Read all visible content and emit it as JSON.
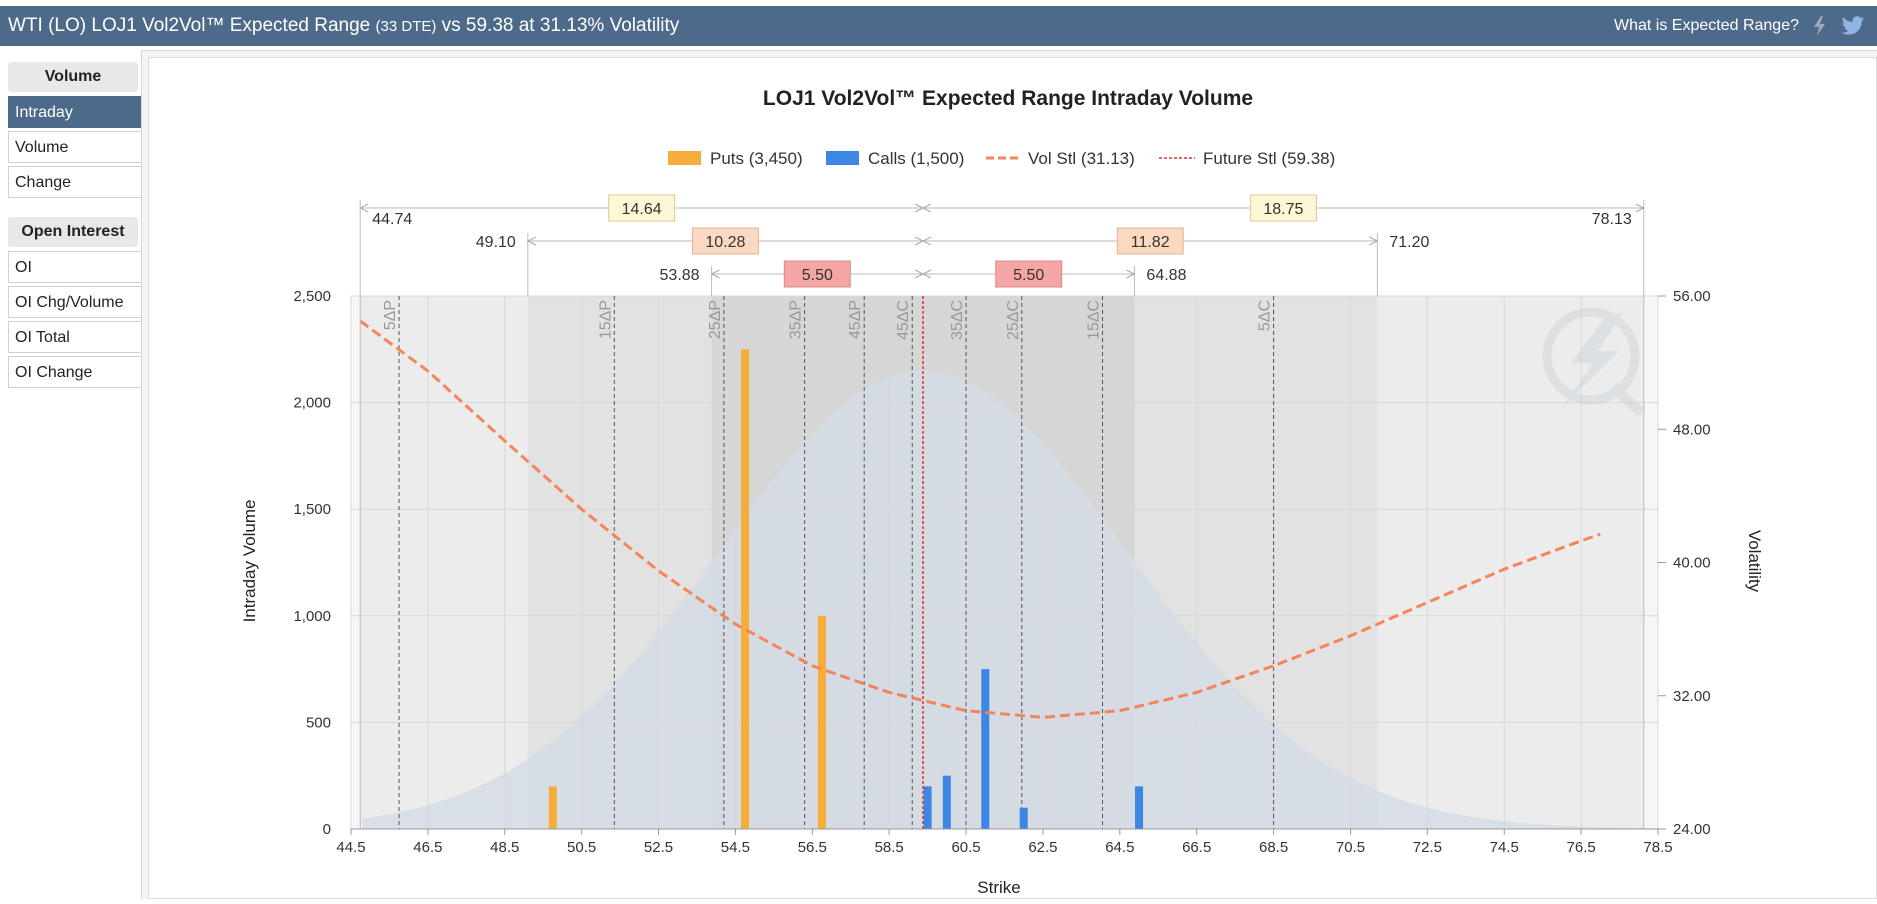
{
  "header": {
    "title_main": "WTI (LO) LOJ1 Vol2Vol™ Expected Range",
    "title_dte": "(33 DTE)",
    "title_tail": "vs 59.38 at 31.13% Volatility",
    "help_link": "What is Expected Range?",
    "icons": [
      "lightning-icon",
      "twitter-icon"
    ]
  },
  "sidebar": {
    "volume_heading": "Volume",
    "volume_items": [
      "Intraday",
      "Volume",
      "Change"
    ],
    "active_item": "Intraday",
    "oi_heading": "Open Interest",
    "oi_items": [
      "OI",
      "OI Chg/Volume",
      "OI Total",
      "OI Change"
    ]
  },
  "colors": {
    "header_bg": "#4e6a8a",
    "puts": "#f6ad3b",
    "calls": "#3d86e3",
    "vol_line": "#f4855a",
    "future_line": "#e03030",
    "distribution": "#d3dce6"
  },
  "chart_data": {
    "type": "bar",
    "title": "LOJ1 Vol2Vol™ Expected Range Intraday Volume",
    "xlabel": "Strike",
    "ylabel": "Intraday Volume",
    "y2label": "Volatility",
    "xlim": [
      44.5,
      78.5
    ],
    "ylim": [
      0,
      2500
    ],
    "y2lim": [
      24,
      56
    ],
    "x_ticks": [
      "44.5",
      "46.5",
      "48.5",
      "50.5",
      "52.5",
      "54.5",
      "56.5",
      "58.5",
      "60.5",
      "62.5",
      "64.5",
      "66.5",
      "68.5",
      "70.5",
      "72.5",
      "74.5",
      "76.5",
      "78.5"
    ],
    "y_ticks": [
      "0",
      "500",
      "1,000",
      "1,500",
      "2,000",
      "2,500"
    ],
    "y2_ticks": [
      "24.00",
      "32.00",
      "40.00",
      "48.00",
      "56.00"
    ],
    "grid": true,
    "legend_position": "top",
    "legend": {
      "puts": "Puts (3,450)",
      "calls": "Calls (1,500)",
      "vol": "Vol Stl (31.13)",
      "future": "Future Stl (59.38)"
    },
    "future_price": 59.38,
    "puts": [
      {
        "strike": 49.75,
        "volume": 200
      },
      {
        "strike": 54.75,
        "volume": 2250
      },
      {
        "strike": 56.75,
        "volume": 1000
      }
    ],
    "calls": [
      {
        "strike": 59.5,
        "volume": 200
      },
      {
        "strike": 60.0,
        "volume": 250
      },
      {
        "strike": 61.0,
        "volume": 750
      },
      {
        "strike": 62.0,
        "volume": 100
      },
      {
        "strike": 65.0,
        "volume": 200
      }
    ],
    "vol_curve": [
      {
        "x": 44.74,
        "v": 54.5
      },
      {
        "x": 46.5,
        "v": 51.5
      },
      {
        "x": 48.5,
        "v": 47.3
      },
      {
        "x": 50.5,
        "v": 43.2
      },
      {
        "x": 52.5,
        "v": 39.5
      },
      {
        "x": 54.5,
        "v": 36.3
      },
      {
        "x": 56.5,
        "v": 33.8
      },
      {
        "x": 58.5,
        "v": 32.2
      },
      {
        "x": 60.5,
        "v": 31.1
      },
      {
        "x": 62.5,
        "v": 30.7
      },
      {
        "x": 64.5,
        "v": 31.1
      },
      {
        "x": 66.5,
        "v": 32.2
      },
      {
        "x": 68.5,
        "v": 33.8
      },
      {
        "x": 70.5,
        "v": 35.6
      },
      {
        "x": 72.5,
        "v": 37.6
      },
      {
        "x": 74.5,
        "v": 39.6
      },
      {
        "x": 76.5,
        "v": 41.3
      },
      {
        "x": 77.0,
        "v": 41.7
      }
    ],
    "distribution_peak_volume": 2150,
    "distribution_center": 59.38,
    "distribution_sigma": 5.3,
    "delta_lines": [
      {
        "label": "5ΔP",
        "x": 45.75
      },
      {
        "label": "15ΔP",
        "x": 51.35
      },
      {
        "label": "25ΔP",
        "x": 54.2
      },
      {
        "label": "35ΔP",
        "x": 56.3
      },
      {
        "label": "45ΔP",
        "x": 57.85
      },
      {
        "label": "45ΔC",
        "x": 59.1
      },
      {
        "label": "35ΔC",
        "x": 60.5
      },
      {
        "label": "25ΔC",
        "x": 61.95
      },
      {
        "label": "15ΔC",
        "x": 64.05
      },
      {
        "label": "5ΔC",
        "x": 68.5
      }
    ],
    "ranges": [
      {
        "low": 44.74,
        "high": 78.13,
        "left_width": "14.64",
        "right_width": "18.75",
        "low_label": "44.74",
        "high_label": "78.13"
      },
      {
        "low": 49.1,
        "high": 71.2,
        "left_width": "10.28",
        "right_width": "11.82",
        "low_label": "49.10",
        "high_label": "71.20"
      },
      {
        "low": 53.88,
        "high": 64.88,
        "left_width": "5.50",
        "right_width": "5.50",
        "low_label": "53.88",
        "high_label": "64.88"
      }
    ]
  }
}
